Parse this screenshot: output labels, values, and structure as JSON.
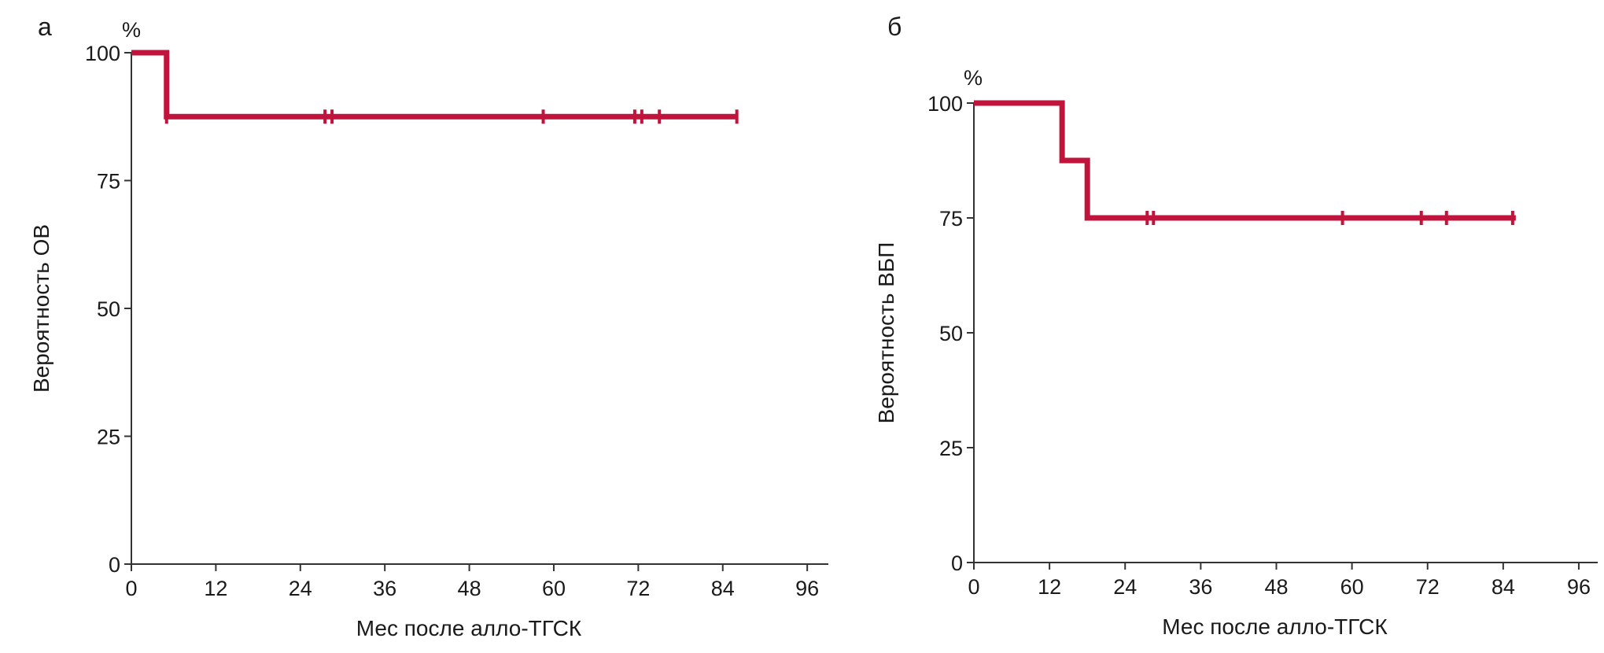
{
  "chart_data": [
    {
      "type": "line",
      "panel_label": "а",
      "title": "",
      "xlabel": "Мес после алло-ТГСК",
      "ylabel": "Вероятность ОВ",
      "y_unit": "%",
      "xlim": [
        0,
        99
      ],
      "ylim": [
        0,
        100
      ],
      "xticks": [
        0,
        12,
        24,
        36,
        48,
        60,
        72,
        84,
        96
      ],
      "yticks": [
        0,
        25,
        50,
        75,
        100
      ],
      "grid": false,
      "color": "#c0143c",
      "series": [
        {
          "name": "ОВ",
          "step_x": [
            0,
            5,
            5,
            86
          ],
          "step_y": [
            100,
            100,
            87.5,
            87.5
          ],
          "censor_x": [
            5,
            27.5,
            28.5,
            58.5,
            71.5,
            72.5,
            75,
            86
          ],
          "censor_y": 87.5
        }
      ]
    },
    {
      "type": "line",
      "panel_label": "б",
      "title": "",
      "xlabel": "Мес после алло-ТГСК",
      "ylabel": "Вероятность ВБП",
      "y_unit": "%",
      "xlim": [
        0,
        99
      ],
      "ylim": [
        0,
        100
      ],
      "xticks": [
        0,
        12,
        24,
        36,
        48,
        60,
        72,
        84,
        96
      ],
      "yticks": [
        0,
        25,
        50,
        75,
        100
      ],
      "grid": false,
      "color": "#c0143c",
      "series": [
        {
          "name": "ВБП",
          "step_x": [
            0,
            14,
            14,
            18,
            18,
            86
          ],
          "step_y": [
            100,
            100,
            87.5,
            87.5,
            75,
            75
          ],
          "censor_x": [
            27.5,
            28.5,
            58.5,
            71,
            75,
            85.5
          ],
          "censor_y": 75
        }
      ]
    }
  ]
}
